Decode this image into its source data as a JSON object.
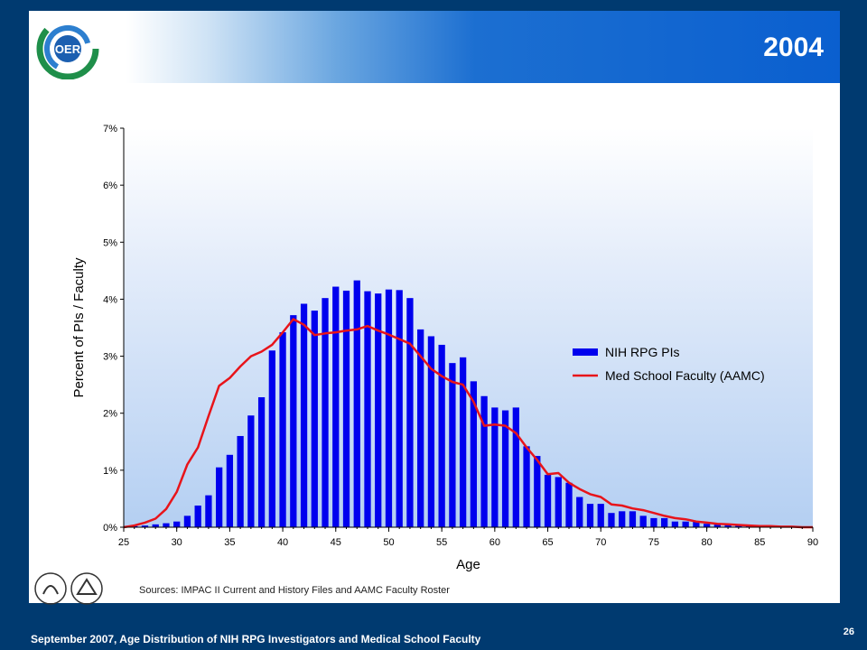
{
  "slide": {
    "title": "2004",
    "sources": "Sources:  IMPAC II Current  and History Files and AAMC Faculty Roster",
    "footer": "September 2007, Age Distribution of NIH RPG Investigators and Medical School Faculty",
    "page_number": "26",
    "logo_text": "OER"
  },
  "colors": {
    "bar": "#0000ee",
    "line": "#e8141a",
    "header": "#0a5fcf",
    "background": "#003a70"
  },
  "chart_data": {
    "type": "bar",
    "title": "",
    "xlabel": "Age",
    "ylabel": "Percent of PIs / Faculty",
    "xlim": [
      25,
      90
    ],
    "ylim": [
      0,
      7
    ],
    "x_ticks": [
      "25",
      "30",
      "35",
      "40",
      "45",
      "50",
      "55",
      "60",
      "65",
      "70",
      "75",
      "80",
      "85",
      "90"
    ],
    "y_ticks": [
      "0%",
      "1%",
      "2%",
      "3%",
      "4%",
      "5%",
      "6%",
      "7%"
    ],
    "legend_position": "right",
    "series": [
      {
        "name": "NIH RPG PIs",
        "kind": "bar",
        "x": [
          26,
          27,
          28,
          29,
          30,
          31,
          32,
          33,
          34,
          35,
          36,
          37,
          38,
          39,
          40,
          41,
          42,
          43,
          44,
          45,
          46,
          47,
          48,
          49,
          50,
          51,
          52,
          53,
          54,
          55,
          56,
          57,
          58,
          59,
          60,
          61,
          62,
          63,
          64,
          65,
          66,
          67,
          68,
          69,
          70,
          71,
          72,
          73,
          74,
          75,
          76,
          77,
          78,
          79,
          80,
          81,
          82,
          83,
          84,
          85,
          86,
          87,
          88,
          89
        ],
        "values": [
          0.02,
          0.03,
          0.05,
          0.07,
          0.1,
          0.2,
          0.38,
          0.56,
          1.05,
          1.27,
          1.6,
          1.96,
          2.28,
          3.1,
          3.42,
          3.72,
          3.92,
          3.8,
          4.02,
          4.22,
          4.15,
          4.33,
          4.14,
          4.1,
          4.17,
          4.16,
          4.02,
          3.47,
          3.35,
          3.2,
          2.88,
          2.98,
          2.56,
          2.3,
          2.1,
          2.05,
          2.1,
          1.42,
          1.25,
          0.92,
          0.88,
          0.78,
          0.53,
          0.41,
          0.41,
          0.25,
          0.28,
          0.28,
          0.2,
          0.16,
          0.16,
          0.1,
          0.1,
          0.1,
          0.06,
          0.06,
          0.04,
          0.03,
          0.02,
          0.02,
          0.02,
          0.01,
          0.01,
          0.01
        ]
      },
      {
        "name": "Med School Faculty (AAMC)",
        "kind": "line",
        "x": [
          25,
          26,
          27,
          28,
          29,
          30,
          31,
          32,
          33,
          34,
          35,
          36,
          37,
          38,
          39,
          40,
          41,
          42,
          43,
          44,
          45,
          46,
          47,
          48,
          49,
          50,
          51,
          52,
          53,
          54,
          55,
          56,
          57,
          58,
          59,
          60,
          61,
          62,
          63,
          64,
          65,
          66,
          67,
          68,
          69,
          70,
          71,
          72,
          73,
          74,
          75,
          76,
          77,
          78,
          79,
          80,
          81,
          82,
          83,
          84,
          85,
          86,
          87,
          88,
          89,
          90
        ],
        "values": [
          0.0,
          0.03,
          0.08,
          0.15,
          0.32,
          0.62,
          1.1,
          1.4,
          1.95,
          2.48,
          2.62,
          2.82,
          3.0,
          3.08,
          3.2,
          3.42,
          3.65,
          3.55,
          3.37,
          3.4,
          3.42,
          3.45,
          3.47,
          3.53,
          3.45,
          3.38,
          3.3,
          3.22,
          3.0,
          2.78,
          2.65,
          2.55,
          2.5,
          2.2,
          1.78,
          1.8,
          1.78,
          1.65,
          1.4,
          1.18,
          0.93,
          0.95,
          0.78,
          0.67,
          0.58,
          0.53,
          0.4,
          0.38,
          0.33,
          0.3,
          0.25,
          0.2,
          0.16,
          0.14,
          0.1,
          0.08,
          0.06,
          0.05,
          0.04,
          0.03,
          0.02,
          0.02,
          0.01,
          0.01,
          0.0,
          0.0
        ]
      }
    ]
  }
}
